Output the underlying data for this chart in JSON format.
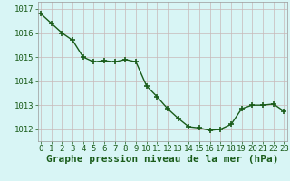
{
  "x": [
    0,
    1,
    2,
    3,
    4,
    5,
    6,
    7,
    8,
    9,
    10,
    11,
    12,
    13,
    14,
    15,
    16,
    17,
    18,
    19,
    20,
    21,
    22,
    23
  ],
  "y": [
    1016.8,
    1016.4,
    1016.0,
    1015.7,
    1015.0,
    1014.8,
    1014.85,
    1014.8,
    1014.9,
    1014.8,
    1013.8,
    1013.35,
    1012.85,
    1012.45,
    1012.1,
    1012.05,
    1011.95,
    1012.0,
    1012.2,
    1012.85,
    1013.0,
    1013.0,
    1013.05,
    1012.75
  ],
  "line_color": "#1a5c1a",
  "marker": "+",
  "marker_size": 5,
  "marker_lw": 1.2,
  "line_width": 1.0,
  "bg_color": "#d8f5f5",
  "grid_color": "#c8b8b8",
  "xlabel": "Graphe pression niveau de la mer (hPa)",
  "xlabel_fontsize": 8,
  "tick_fontsize": 6.5,
  "tick_color": "#1a5c1a",
  "ylim": [
    1011.5,
    1017.3
  ],
  "yticks": [
    1012,
    1013,
    1014,
    1015,
    1016,
    1017
  ],
  "xticks": [
    0,
    1,
    2,
    3,
    4,
    5,
    6,
    7,
    8,
    9,
    10,
    11,
    12,
    13,
    14,
    15,
    16,
    17,
    18,
    19,
    20,
    21,
    22,
    23
  ],
  "xlim": [
    -0.3,
    23.3
  ]
}
